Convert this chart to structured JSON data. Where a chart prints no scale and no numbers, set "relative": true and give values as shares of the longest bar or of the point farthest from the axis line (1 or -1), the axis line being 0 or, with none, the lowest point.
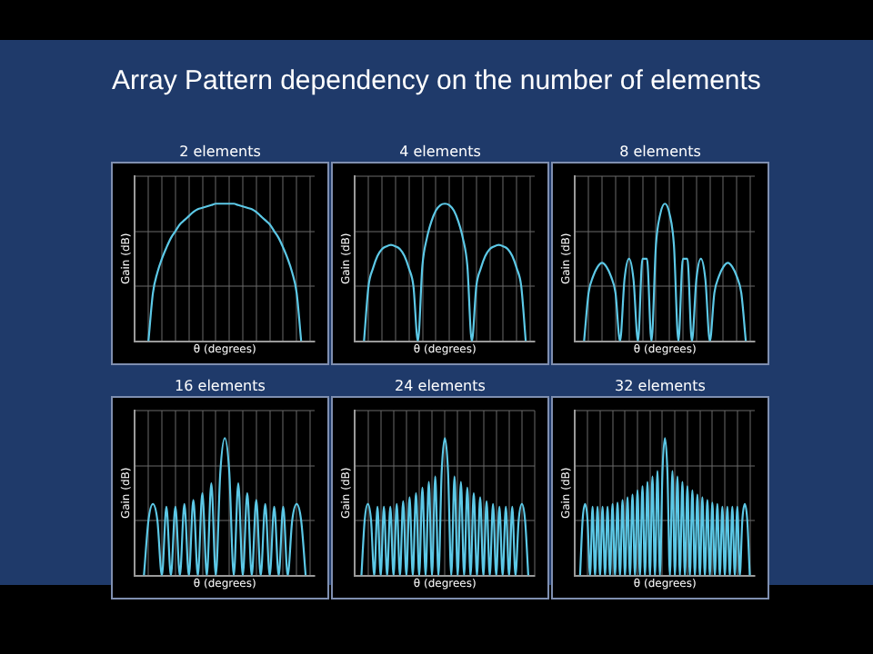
{
  "chart_data": [
    {
      "type": "line",
      "title": "Array Pattern dependency on the number of elements",
      "subtitle": "2 elements",
      "xlabel": "θ (degrees)",
      "ylabel": "Gain (dB)",
      "relative": true,
      "grid": true,
      "legend": false,
      "marker": "none",
      "color": "#5cc8e6",
      "categories": [
        null,
        null,
        null,
        null,
        null,
        null,
        null,
        null,
        null,
        null,
        null,
        null,
        null,
        null,
        null,
        null,
        null,
        null,
        null,
        null,
        null,
        null,
        null,
        null,
        null,
        null,
        null,
        null,
        null,
        null,
        null,
        null,
        null,
        null,
        null,
        null,
        null,
        null,
        null,
        null,
        null
      ],
      "values": [
        null,
        null,
        null,
        0,
        0.35,
        0.5,
        0.6,
        0.68,
        0.75,
        0.8,
        0.85,
        0.88,
        0.91,
        0.94,
        0.96,
        0.97,
        0.98,
        0.99,
        1,
        1,
        1,
        1,
        1,
        0.99,
        0.98,
        0.97,
        0.96,
        0.94,
        0.91,
        0.88,
        0.85,
        0.8,
        0.75,
        0.68,
        0.6,
        0.5,
        0.35,
        0,
        null,
        null,
        null
      ]
    },
    {
      "type": "line",
      "subtitle": "4 elements",
      "xlabel": "θ (degrees)",
      "ylabel": "Gain (dB)",
      "relative": true,
      "grid": true,
      "legend": false,
      "marker": "none",
      "color": "#5cc8e6",
      "categories": [
        null,
        null,
        null,
        null,
        null,
        null,
        null,
        null,
        null,
        null,
        null,
        null,
        null,
        null,
        null,
        null,
        null,
        null,
        null,
        null,
        null,
        null,
        null,
        null,
        null,
        null,
        null,
        null,
        null,
        null,
        null,
        null,
        null,
        null,
        null,
        null,
        null,
        null,
        null,
        null,
        null
      ],
      "values": [
        null,
        null,
        0,
        0.4,
        0.53,
        0.62,
        0.67,
        0.69,
        0.7,
        0.69,
        0.67,
        0.62,
        0.53,
        0.4,
        0,
        0.55,
        0.75,
        0.87,
        0.95,
        0.99,
        1,
        0.99,
        0.95,
        0.87,
        0.75,
        0.55,
        0,
        0.4,
        0.53,
        0.62,
        0.67,
        0.69,
        0.7,
        0.69,
        0.67,
        0.62,
        0.53,
        0.4,
        0,
        null,
        null
      ]
    },
    {
      "type": "line",
      "subtitle": "8 elements",
      "xlabel": "θ (degrees)",
      "ylabel": "Gain (dB)",
      "relative": true,
      "grid": true,
      "legend": false,
      "marker": "none",
      "color": "#5cc8e6",
      "categories": [
        null,
        null,
        null,
        null,
        null,
        null,
        null,
        null,
        null,
        null,
        null,
        null,
        null,
        null,
        null,
        null,
        null,
        null,
        null,
        null,
        null,
        null,
        null,
        null,
        null,
        null,
        null,
        null,
        null,
        null,
        null,
        null,
        null,
        null,
        null,
        null,
        null,
        null,
        null,
        null,
        null
      ],
      "values": [
        null,
        null,
        0,
        0.35,
        0.47,
        0.54,
        0.57,
        0.54,
        0.47,
        0.35,
        0,
        0.45,
        0.6,
        0.45,
        0,
        0.6,
        0.6,
        0,
        0.7,
        0.93,
        1,
        0.93,
        0.7,
        0,
        0.6,
        0.6,
        0,
        0.45,
        0.6,
        0.45,
        0,
        0.35,
        0.47,
        0.54,
        0.57,
        0.54,
        0.47,
        0.35,
        0,
        null,
        null
      ]
    },
    {
      "type": "line",
      "subtitle": "16 elements",
      "xlabel": "θ (degrees)",
      "ylabel": "Gain (dB)",
      "relative": true,
      "grid": true,
      "legend": false,
      "marker": "none",
      "color": "#5cc8e6",
      "categories": [
        null,
        null,
        null,
        null,
        null,
        null,
        null,
        null,
        null,
        null,
        null,
        null,
        null,
        null,
        null,
        null,
        null,
        null,
        null,
        null,
        null,
        null,
        null,
        null,
        null,
        null,
        null,
        null,
        null,
        null,
        null,
        null,
        null,
        null,
        null,
        null,
        null,
        null,
        null,
        null,
        null
      ],
      "values": [
        null,
        null,
        0,
        0.4,
        0.52,
        0.4,
        0,
        0.5,
        0,
        0.5,
        0,
        0.52,
        0,
        0.55,
        0,
        0.6,
        0,
        0.67,
        0,
        0.75,
        1,
        0.75,
        0,
        0.67,
        0,
        0.6,
        0,
        0.55,
        0,
        0.52,
        0,
        0.5,
        0,
        0.5,
        0,
        0.4,
        0.52,
        0.4,
        0,
        null,
        null
      ]
    },
    {
      "type": "line",
      "subtitle": "24 elements",
      "xlabel": "θ (degrees)",
      "ylabel": "Gain (dB)",
      "relative": true,
      "grid": true,
      "legend": false,
      "marker": "none",
      "color": "#5cc8e6",
      "categories": [
        null,
        null,
        null,
        null,
        null,
        null,
        null,
        null,
        null,
        null,
        null,
        null,
        null,
        null,
        null,
        null,
        null,
        null,
        null,
        null,
        null,
        null,
        null,
        null,
        null,
        null,
        null,
        null,
        null,
        null,
        null,
        null,
        null,
        null,
        null,
        null,
        null,
        null,
        null,
        null,
        null,
        null,
        null,
        null,
        null,
        null,
        null,
        null,
        null,
        null,
        null,
        null,
        null,
        null,
        null,
        null,
        null
      ],
      "values": [
        null,
        null,
        0,
        0.4,
        0.52,
        0.4,
        0,
        0.5,
        0,
        0.5,
        0,
        0.5,
        0,
        0.52,
        0,
        0.54,
        0,
        0.57,
        0,
        0.6,
        0,
        0.64,
        0,
        0.68,
        0,
        0.72,
        0,
        0.75,
        1,
        0.75,
        0,
        0.72,
        0,
        0.68,
        0,
        0.64,
        0,
        0.6,
        0,
        0.57,
        0,
        0.54,
        0,
        0.52,
        0,
        0.5,
        0,
        0.5,
        0,
        0.5,
        0,
        0.4,
        0.52,
        0.4,
        0,
        null,
        null
      ]
    },
    {
      "type": "line",
      "subtitle": "32 elements",
      "xlabel": "θ (degrees)",
      "ylabel": "Gain (dB)",
      "relative": true,
      "grid": true,
      "legend": false,
      "marker": "none",
      "color": "#5cc8e6",
      "categories": [
        null,
        null,
        null,
        null,
        null,
        null,
        null,
        null,
        null,
        null,
        null,
        null,
        null,
        null,
        null,
        null,
        null,
        null,
        null,
        null,
        null,
        null,
        null,
        null,
        null,
        null,
        null,
        null,
        null,
        null,
        null,
        null,
        null,
        null,
        null,
        null,
        null,
        null,
        null,
        null,
        null,
        null,
        null,
        null,
        null,
        null,
        null,
        null,
        null,
        null,
        null,
        null,
        null,
        null,
        null,
        null,
        null,
        null,
        null,
        null,
        null,
        null,
        null,
        null,
        null,
        null,
        null,
        null,
        null,
        null,
        null,
        null,
        null
      ],
      "values": [
        null,
        null,
        0,
        0.4,
        0.52,
        0.4,
        0,
        0.5,
        0,
        0.5,
        0,
        0.5,
        0,
        0.5,
        0,
        0.52,
        0,
        0.53,
        0,
        0.55,
        0,
        0.57,
        0,
        0.59,
        0,
        0.62,
        0,
        0.65,
        0,
        0.68,
        0,
        0.72,
        0,
        0.76,
        0,
        0.75,
        1,
        0.75,
        0,
        0.76,
        0,
        0.72,
        0,
        0.68,
        0,
        0.65,
        0,
        0.62,
        0,
        0.59,
        0,
        0.57,
        0,
        0.55,
        0,
        0.53,
        0,
        0.52,
        0,
        0.5,
        0,
        0.5,
        0,
        0.5,
        0,
        0.5,
        0,
        0.4,
        0.52,
        0.4,
        0,
        null,
        null
      ]
    }
  ]
}
